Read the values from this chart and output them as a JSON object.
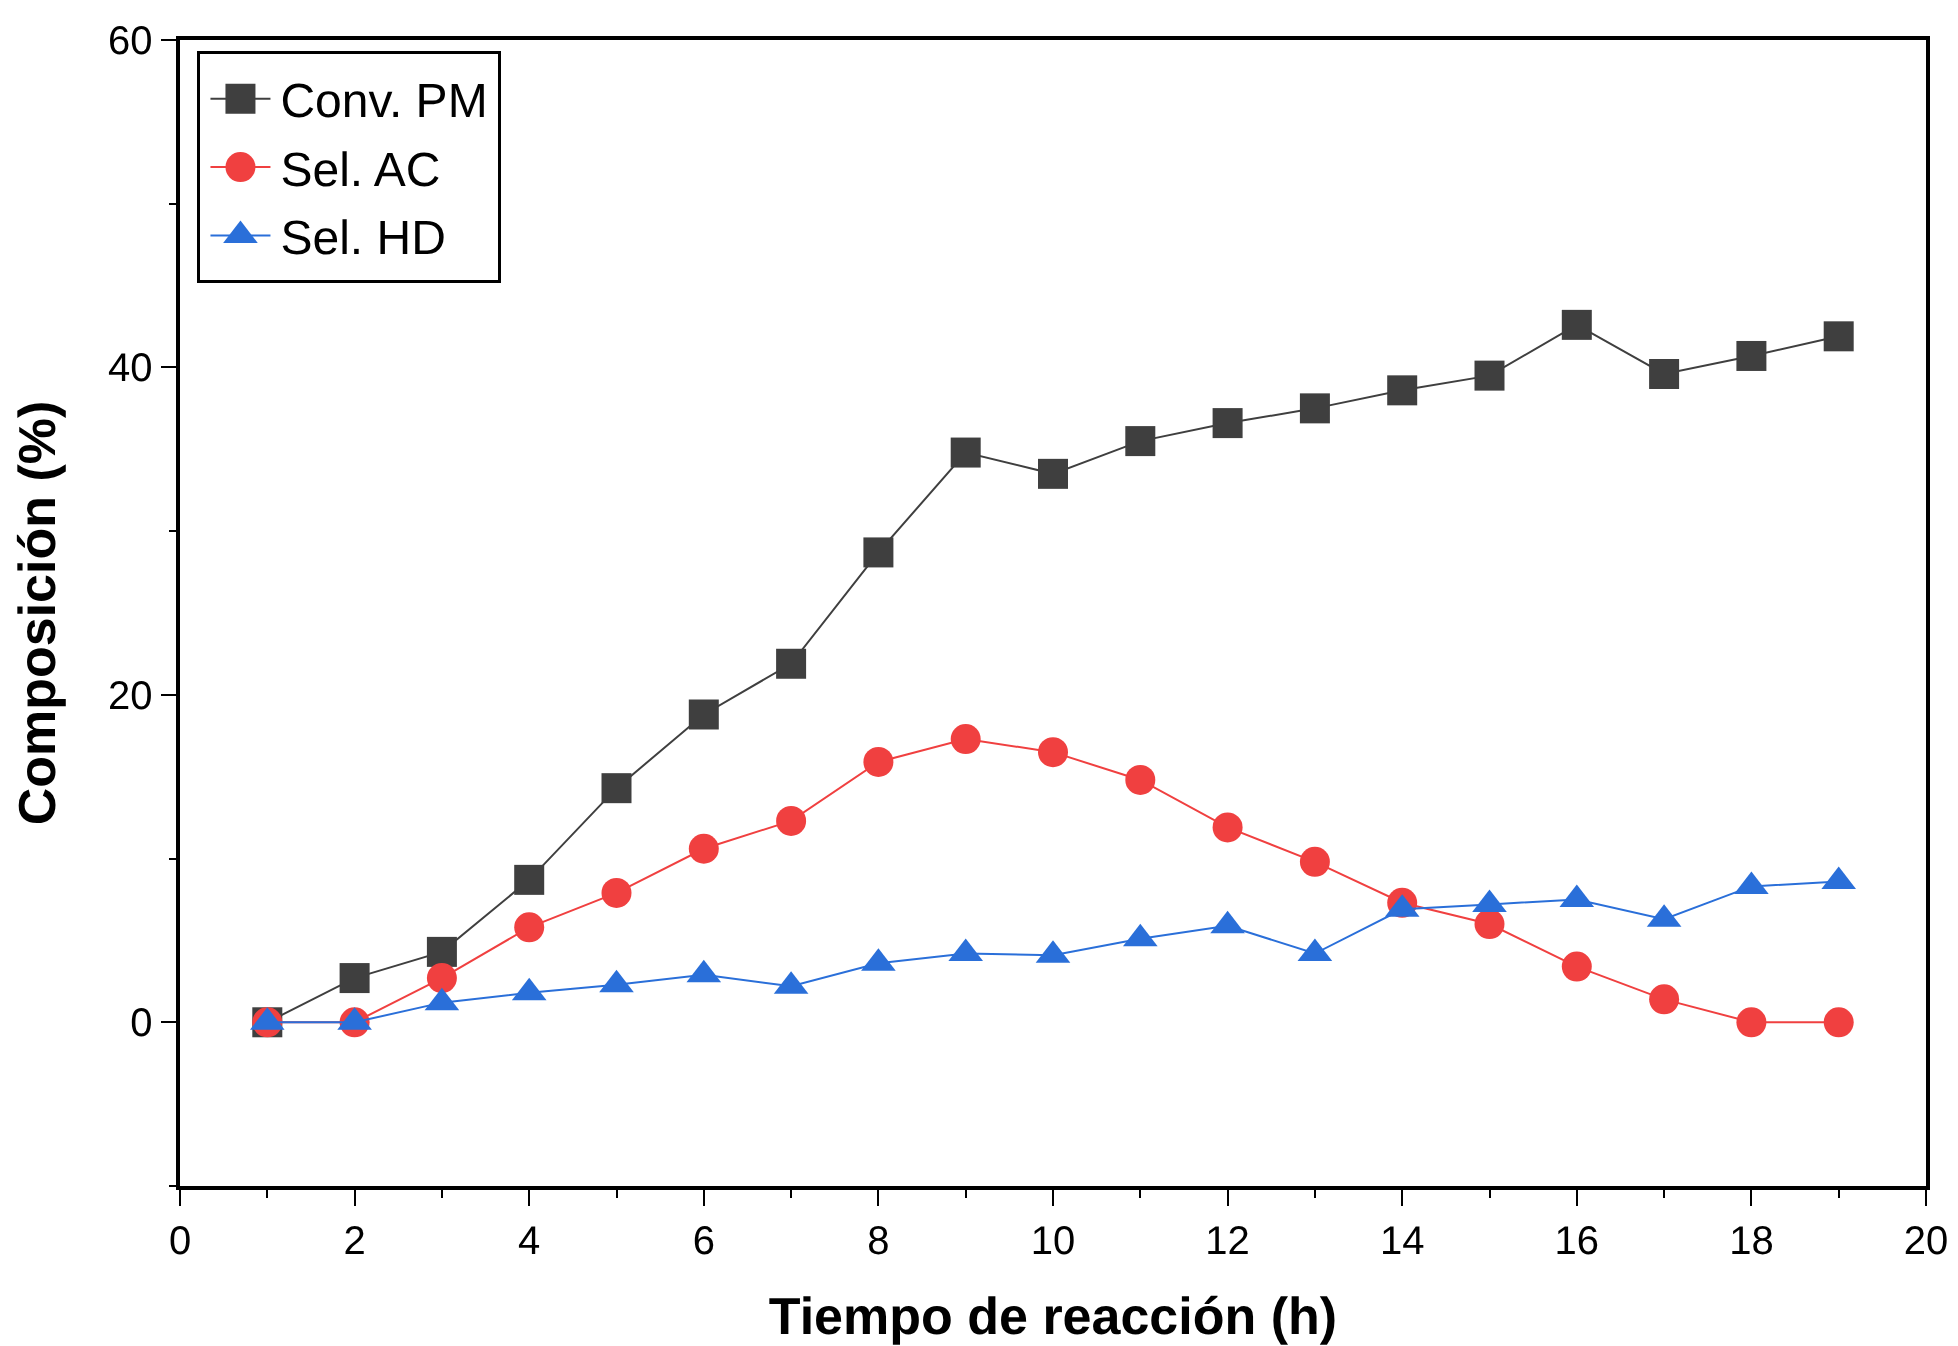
{
  "chart_data": {
    "type": "line",
    "xlabel": "Tiempo de reacción (h)",
    "ylabel": "Composición (%)",
    "x": [
      1,
      2,
      3,
      4,
      5,
      6,
      7,
      8,
      9,
      10,
      11,
      12,
      13,
      14,
      15,
      16,
      17,
      18,
      19
    ],
    "series": [
      {
        "name": "Conv. PM",
        "color": "#3f3f3f",
        "marker": "square",
        "values": [
          0,
          2.7,
          4.3,
          8.7,
          14.3,
          18.8,
          21.9,
          28.7,
          34.8,
          33.5,
          35.5,
          36.6,
          37.5,
          38.6,
          39.5,
          42.6,
          39.6,
          40.7,
          41.9
        ]
      },
      {
        "name": "Sel. AC",
        "color": "#f04040",
        "marker": "circle",
        "values": [
          0,
          0,
          2.7,
          5.8,
          7.9,
          10.6,
          12.3,
          15.9,
          17.3,
          16.5,
          14.8,
          11.9,
          9.8,
          7.3,
          6.0,
          3.4,
          1.4,
          0,
          0
        ]
      },
      {
        "name": "Sel. HD",
        "color": "#2a6fd9",
        "marker": "triangle",
        "values": [
          0,
          0,
          1.2,
          1.8,
          2.3,
          2.9,
          2.2,
          3.6,
          4.2,
          4.1,
          5.1,
          5.9,
          4.2,
          6.9,
          7.2,
          7.5,
          6.3,
          8.3,
          8.6
        ]
      }
    ],
    "xlim": [
      0,
      20
    ],
    "xticks": [
      0,
      2,
      4,
      6,
      8,
      10,
      12,
      14,
      16,
      18,
      20
    ],
    "ylim": [
      -10,
      60
    ],
    "yticks": [
      0,
      20,
      40,
      60
    ],
    "grid": false,
    "legend": "top left",
    "line_style": "solid"
  }
}
